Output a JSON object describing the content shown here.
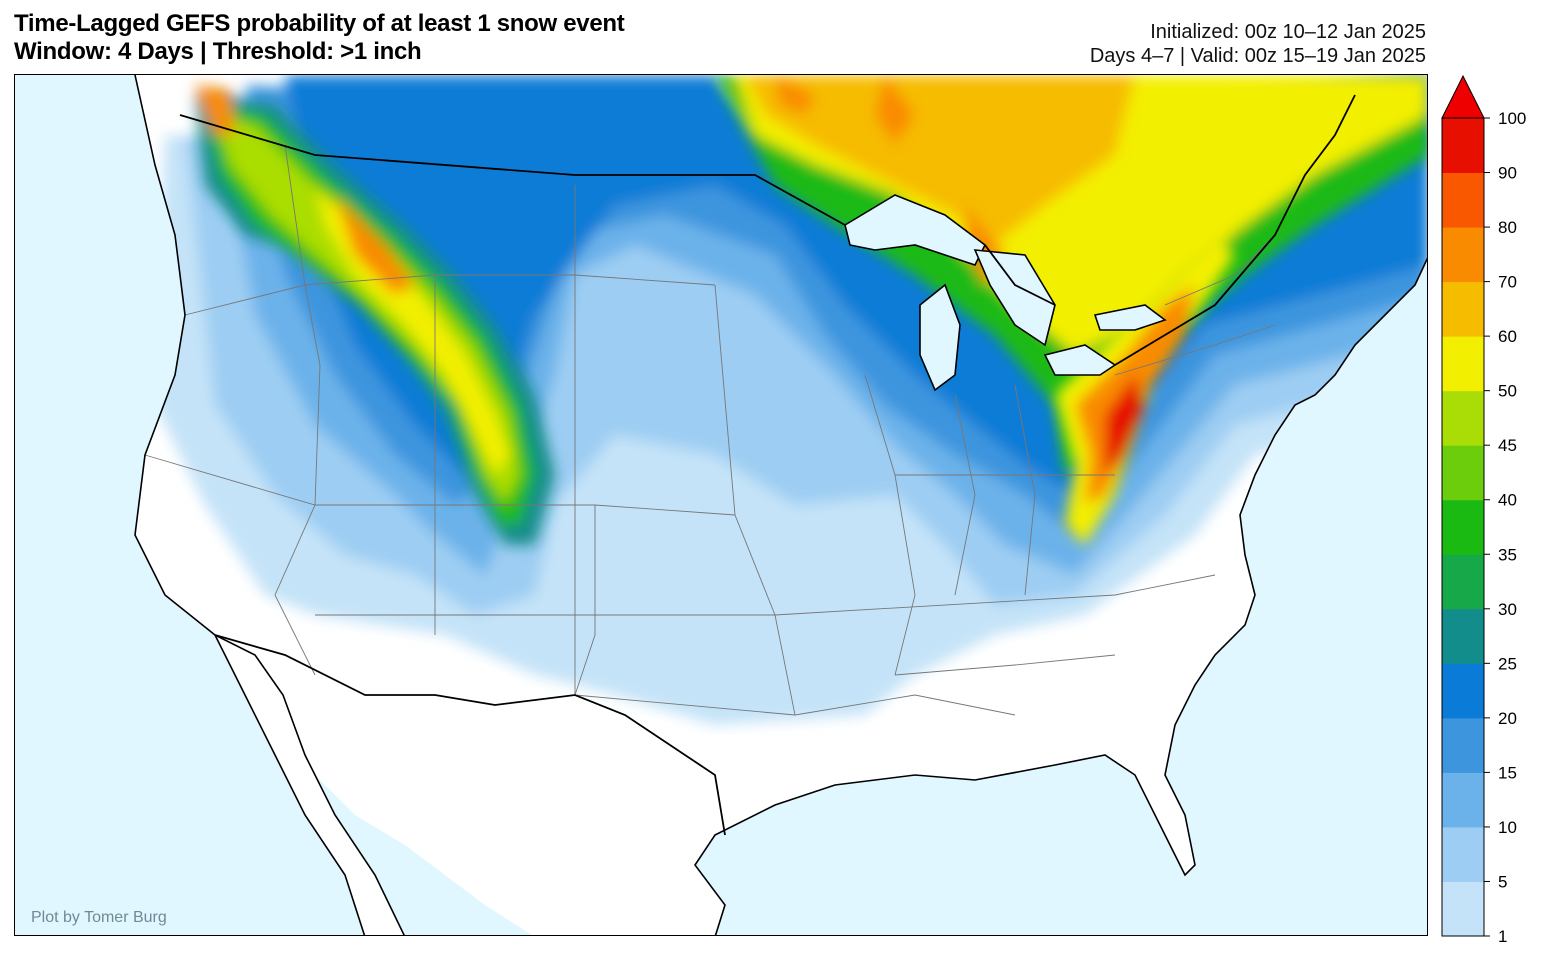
{
  "header": {
    "title_line1": "Time-Lagged GEFS probability of at least 1 snow event",
    "title_line2": "Window: 4 Days | Threshold: >1 inch",
    "init_line": "Initialized: 00z 10–12 Jan 2025",
    "valid_line": "Days 4–7 | Valid: 00z 15–19 Jan 2025"
  },
  "map": {
    "credit": "Plot by Tomer Burg",
    "ocean_color": "#e0f7ff",
    "land_color": "#ffffff",
    "lake_color": "#e0f7ff",
    "border_color": "#000000",
    "state_line_color": "#777777"
  },
  "colorbar": {
    "levels": [
      1,
      5,
      10,
      15,
      20,
      25,
      30,
      35,
      40,
      45,
      50,
      60,
      70,
      80,
      90,
      100
    ],
    "colors": [
      "#c4e3f8",
      "#9dcdf3",
      "#6cb2ea",
      "#3d95de",
      "#0a7bd6",
      "#128d8b",
      "#17a84a",
      "#1bba12",
      "#6ccd0c",
      "#aadd06",
      "#f3ef00",
      "#f6bc00",
      "#f98b00",
      "#f95800",
      "#e60f00"
    ],
    "extend_color": "#ee0000",
    "labels": [
      "100",
      "90",
      "80",
      "70",
      "60",
      "50",
      "45",
      "40",
      "35",
      "30",
      "25",
      "20",
      "15",
      "10",
      "5",
      "1"
    ]
  }
}
